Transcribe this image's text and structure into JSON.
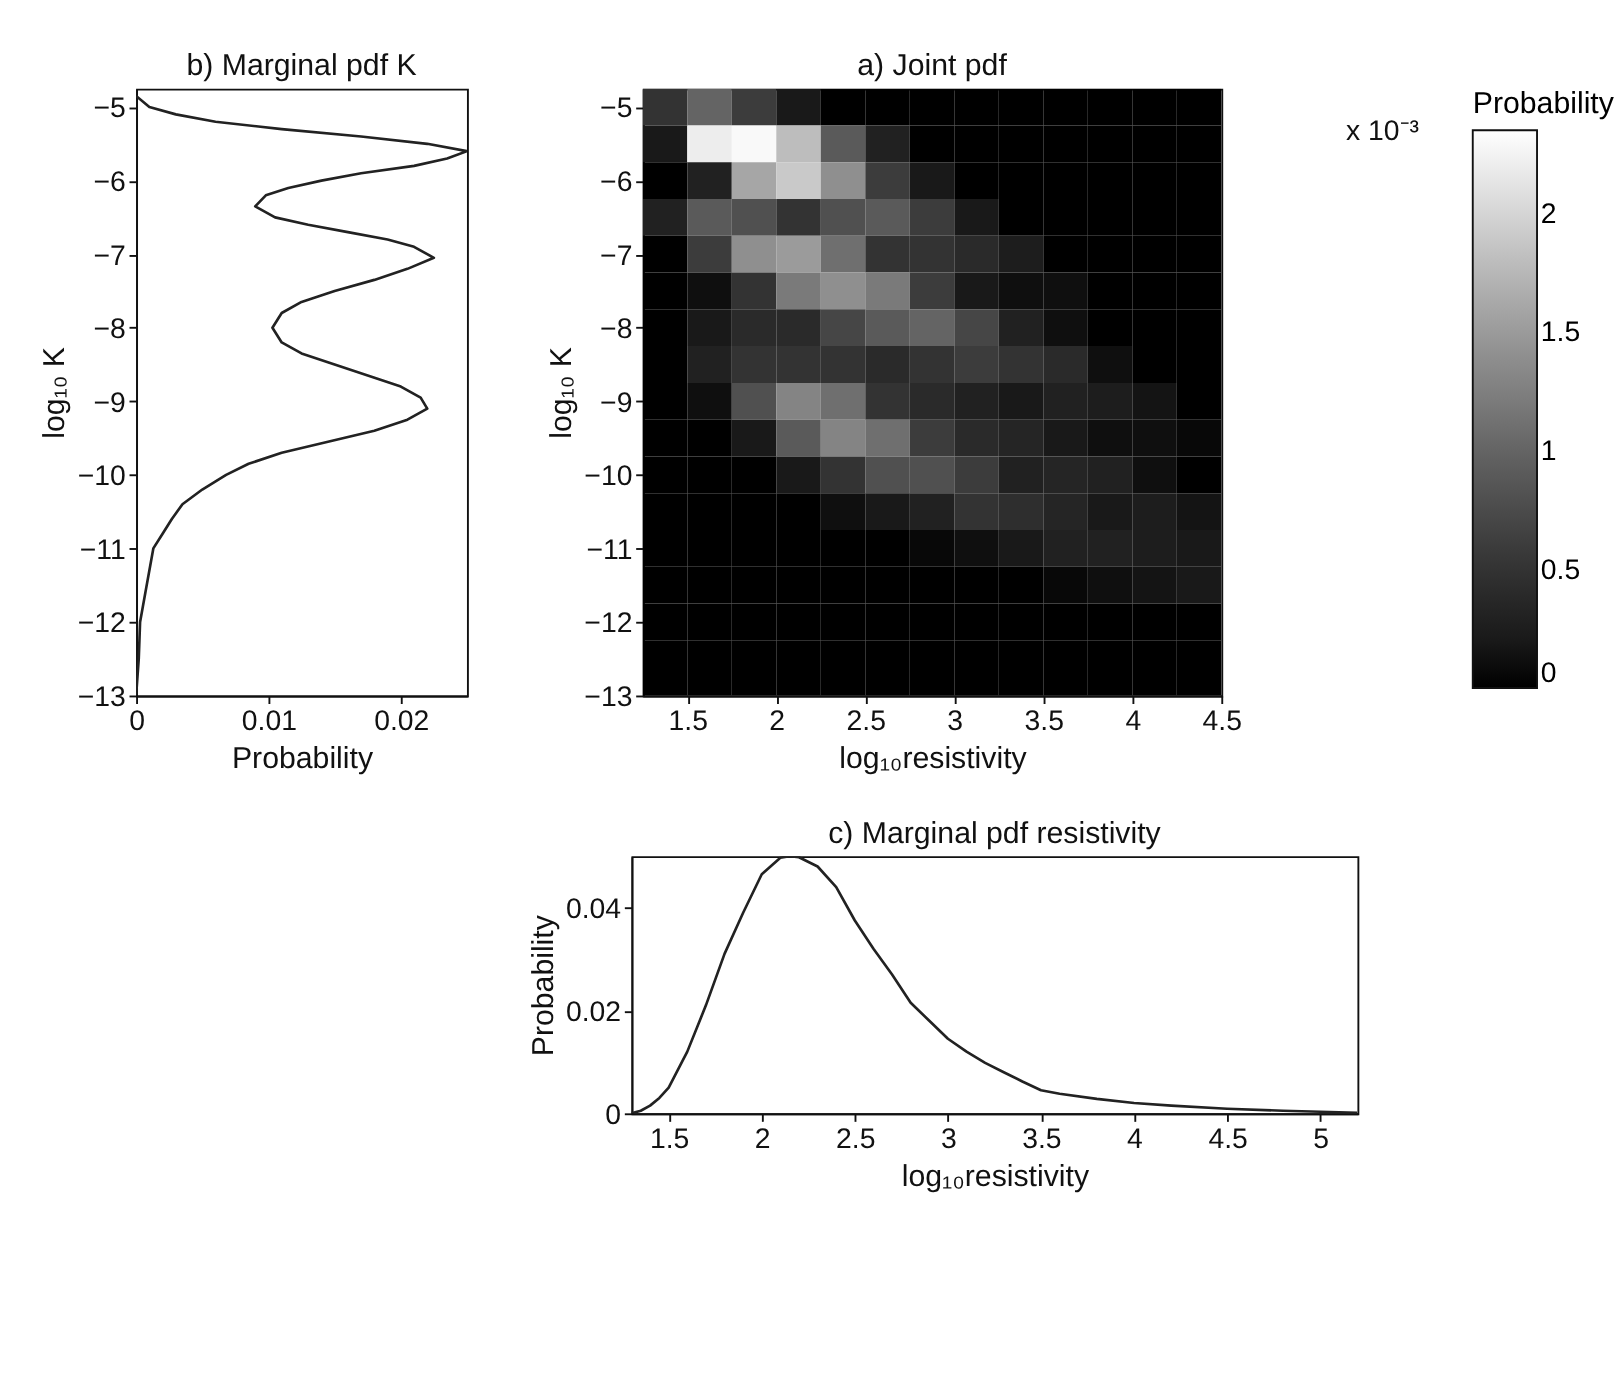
{
  "chart_data": [
    {
      "type": "line",
      "title": "b) Marginal pdf K",
      "xlabel": "Probability",
      "ylabel": "log₁₀ K",
      "orientation": "horizontal",
      "color": "#222222",
      "marker": "none",
      "line_style": "solid",
      "x": [
        -4.85,
        -5.0,
        -5.1,
        -5.2,
        -5.3,
        -5.4,
        -5.5,
        -5.6,
        -5.7,
        -5.8,
        -5.9,
        -6.0,
        -6.1,
        -6.2,
        -6.35,
        -6.5,
        -6.6,
        -6.7,
        -6.8,
        -6.9,
        -7.05,
        -7.2,
        -7.35,
        -7.5,
        -7.65,
        -7.8,
        -8.0,
        -8.2,
        -8.35,
        -8.5,
        -8.65,
        -8.8,
        -8.95,
        -9.1,
        -9.25,
        -9.4,
        -9.55,
        -9.7,
        -9.85,
        -10.0,
        -10.2,
        -10.4,
        -10.6,
        -10.8,
        -11.0,
        -11.3,
        -11.6,
        -12.0,
        -12.5,
        -13.0
      ],
      "values": [
        0,
        0.001,
        0.003,
        0.006,
        0.011,
        0.017,
        0.022,
        0.025,
        0.0235,
        0.021,
        0.017,
        0.014,
        0.0115,
        0.0098,
        0.009,
        0.0105,
        0.013,
        0.016,
        0.019,
        0.021,
        0.0225,
        0.0205,
        0.018,
        0.015,
        0.0125,
        0.011,
        0.0103,
        0.011,
        0.0125,
        0.015,
        0.0175,
        0.02,
        0.0215,
        0.022,
        0.0205,
        0.018,
        0.0145,
        0.011,
        0.0085,
        0.0068,
        0.005,
        0.0035,
        0.0027,
        0.002,
        0.0013,
        0.001,
        0.0007,
        0.0003,
        0.0002,
        0
      ],
      "xlim": [
        0,
        0.025
      ],
      "xticks": [
        0,
        0.01,
        0.02
      ],
      "ylim": [
        -13,
        -4.75
      ],
      "yticks": [
        -13,
        -12,
        -11,
        -10,
        -9,
        -8,
        -7,
        -6,
        -5
      ]
    },
    {
      "type": "heatmap",
      "title": "a) Joint pdf",
      "xlabel": "log₁₀resistivity",
      "ylabel": "log₁₀ K",
      "clabel": "Probability",
      "annotations": [
        "x 10⁻³"
      ],
      "x": [
        1.375,
        1.625,
        1.875,
        2.125,
        2.375,
        2.625,
        2.875,
        3.125,
        3.375,
        3.625,
        3.875,
        4.125,
        4.375
      ],
      "y": [
        -5,
        -5.5,
        -6,
        -6.5,
        -7,
        -7.5,
        -8,
        -8.5,
        -9,
        -9.5,
        -10,
        -10.5,
        -11,
        -11.5,
        -12,
        -12.5,
        -13
      ],
      "cells": [
        [
          0.5,
          1.0,
          0.6,
          0.2,
          0,
          0,
          0,
          0,
          0,
          0,
          0,
          0,
          0
        ],
        [
          0.2,
          2.2,
          2.3,
          1.8,
          0.9,
          0.3,
          0,
          0,
          0,
          0,
          0,
          0,
          0
        ],
        [
          0,
          0.3,
          1.6,
          1.9,
          1.4,
          0.6,
          0.2,
          0,
          0,
          0,
          0,
          0,
          0
        ],
        [
          0.3,
          0.9,
          0.8,
          0.5,
          0.8,
          0.9,
          0.6,
          0.2,
          0,
          0,
          0,
          0,
          0
        ],
        [
          0,
          0.6,
          1.4,
          1.5,
          1.1,
          0.5,
          0.5,
          0.4,
          0.25,
          0,
          0,
          0,
          0
        ],
        [
          0,
          0.1,
          0.5,
          1.2,
          1.4,
          1.2,
          0.6,
          0.2,
          0.1,
          0.1,
          0,
          0,
          0
        ],
        [
          0,
          0.2,
          0.4,
          0.4,
          0.7,
          0.9,
          1.0,
          0.7,
          0.3,
          0.1,
          0,
          0,
          0
        ],
        [
          0,
          0.3,
          0.5,
          0.5,
          0.5,
          0.4,
          0.5,
          0.6,
          0.5,
          0.4,
          0.1,
          0,
          0
        ],
        [
          0,
          0.1,
          0.8,
          1.3,
          1.1,
          0.5,
          0.4,
          0.3,
          0.2,
          0.3,
          0.25,
          0.15,
          0
        ],
        [
          0,
          0,
          0.2,
          0.9,
          1.3,
          1.1,
          0.6,
          0.4,
          0.35,
          0.2,
          0.1,
          0.1,
          0.05
        ],
        [
          0,
          0,
          0,
          0.2,
          0.5,
          0.8,
          0.8,
          0.6,
          0.3,
          0.35,
          0.3,
          0.1,
          0
        ],
        [
          0,
          0,
          0,
          0,
          0.1,
          0.2,
          0.3,
          0.5,
          0.45,
          0.35,
          0.2,
          0.25,
          0.15
        ],
        [
          0,
          0,
          0,
          0,
          0,
          0,
          0.05,
          0.1,
          0.2,
          0.3,
          0.3,
          0.25,
          0.2
        ],
        [
          0,
          0,
          0,
          0,
          0,
          0,
          0,
          0,
          0,
          0.05,
          0.1,
          0.15,
          0.2
        ],
        [
          0,
          0,
          0,
          0,
          0,
          0,
          0,
          0,
          0,
          0,
          0,
          0,
          0
        ],
        [
          0,
          0,
          0,
          0,
          0,
          0,
          0,
          0,
          0,
          0,
          0,
          0,
          0
        ],
        [
          0,
          0,
          0,
          0,
          0,
          0,
          0,
          0,
          0,
          0,
          0,
          0,
          0
        ]
      ],
      "clim": [
        0,
        2.35
      ],
      "cticks": [
        0,
        0.5,
        1,
        1.5,
        2
      ],
      "xlim": [
        1.25,
        4.5
      ],
      "xticks": [
        1.5,
        2,
        2.5,
        3,
        3.5,
        4,
        4.5
      ],
      "ylim": [
        -13,
        -4.75
      ],
      "yticks": [
        -13,
        -12,
        -11,
        -10,
        -9,
        -8,
        -7,
        -6,
        -5
      ]
    },
    {
      "type": "line",
      "title": "c) Marginal pdf resistivity",
      "xlabel": "log₁₀resistivity",
      "ylabel": "Probability",
      "color": "#222222",
      "marker": "none",
      "line_style": "solid",
      "x": [
        1.3,
        1.35,
        1.4,
        1.45,
        1.5,
        1.6,
        1.7,
        1.8,
        1.9,
        2.0,
        2.1,
        2.15,
        2.2,
        2.3,
        2.4,
        2.5,
        2.6,
        2.7,
        2.8,
        2.9,
        3.0,
        3.1,
        3.2,
        3.3,
        3.4,
        3.5,
        3.6,
        3.8,
        4.0,
        4.2,
        4.5,
        4.8,
        5.0,
        5.2
      ],
      "values": [
        0,
        0.0005,
        0.0015,
        0.003,
        0.005,
        0.012,
        0.021,
        0.031,
        0.039,
        0.0465,
        0.0497,
        0.05,
        0.0498,
        0.048,
        0.044,
        0.0375,
        0.032,
        0.027,
        0.0215,
        0.018,
        0.0145,
        0.012,
        0.0098,
        0.008,
        0.0062,
        0.0045,
        0.0038,
        0.0028,
        0.002,
        0.0015,
        0.0009,
        0.0005,
        0.0003,
        0.0001
      ],
      "xlim": [
        1.3,
        5.2
      ],
      "xticks": [
        1.5,
        2,
        2.5,
        3,
        3.5,
        4,
        4.5,
        5
      ],
      "ylim": [
        0,
        0.05
      ],
      "yticks": [
        0,
        0.02,
        0.04
      ]
    }
  ]
}
